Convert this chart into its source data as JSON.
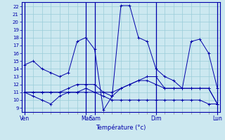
{
  "background_color": "#cce8f0",
  "grid_color": "#99ccd9",
  "line_color": "#0000aa",
  "sep_color": "#334499",
  "xlabel": "Température (°c)",
  "ylim": [
    8.5,
    22.5
  ],
  "yticks": [
    9,
    10,
    11,
    12,
    13,
    14,
    15,
    16,
    17,
    18,
    19,
    20,
    21,
    22
  ],
  "n_points": 23,
  "day_sep_positions": [
    0,
    7,
    8,
    15,
    22
  ],
  "xtick_labels_shown": [
    "Ven",
    "Mar",
    "Sam",
    "Dim",
    "Lun"
  ],
  "series": [
    {
      "x": [
        0,
        1,
        2,
        3,
        4,
        5,
        6,
        7,
        8,
        9,
        10,
        11,
        12,
        13,
        14,
        15,
        16,
        17,
        18,
        19,
        20,
        21,
        22
      ],
      "y": [
        14.5,
        15.0,
        14.0,
        13.5,
        13.0,
        13.5,
        17.5,
        18.0,
        16.5,
        8.7,
        10.5,
        22.1,
        22.1,
        18.0,
        17.5,
        14.0,
        13.0,
        12.5,
        11.5,
        17.5,
        17.8,
        16.0,
        11.5
      ]
    },
    {
      "x": [
        0,
        1,
        2,
        3,
        4,
        5,
        6,
        7,
        8,
        9,
        10,
        11,
        12,
        13,
        14,
        15,
        16,
        17,
        18,
        19,
        20,
        21,
        22
      ],
      "y": [
        11.0,
        10.5,
        10.0,
        9.5,
        10.5,
        11.0,
        11.0,
        11.5,
        11.0,
        10.5,
        10.0,
        10.0,
        10.0,
        10.0,
        10.0,
        10.0,
        10.0,
        10.0,
        10.0,
        10.0,
        10.0,
        9.5,
        9.5
      ]
    },
    {
      "x": [
        0,
        1,
        2,
        3,
        4,
        5,
        6,
        7,
        8,
        9,
        10,
        11,
        12,
        13,
        14,
        15,
        16,
        17,
        18,
        19,
        20,
        21,
        22
      ],
      "y": [
        11.0,
        11.0,
        11.0,
        11.0,
        11.0,
        11.5,
        12.0,
        12.0,
        12.0,
        11.0,
        10.5,
        11.5,
        12.0,
        12.5,
        12.5,
        12.0,
        11.5,
        11.5,
        11.5,
        11.5,
        11.5,
        11.5,
        9.5
      ]
    },
    {
      "x": [
        0,
        1,
        2,
        3,
        4,
        5,
        6,
        7,
        8,
        9,
        10,
        11,
        12,
        13,
        14,
        15,
        16,
        17,
        18,
        19,
        20,
        21,
        22
      ],
      "y": [
        11.0,
        11.0,
        11.0,
        11.0,
        11.0,
        11.0,
        11.0,
        11.0,
        11.0,
        11.0,
        11.0,
        11.5,
        12.0,
        12.5,
        13.0,
        13.0,
        11.5,
        11.5,
        11.5,
        11.5,
        11.5,
        11.5,
        9.5
      ]
    }
  ]
}
